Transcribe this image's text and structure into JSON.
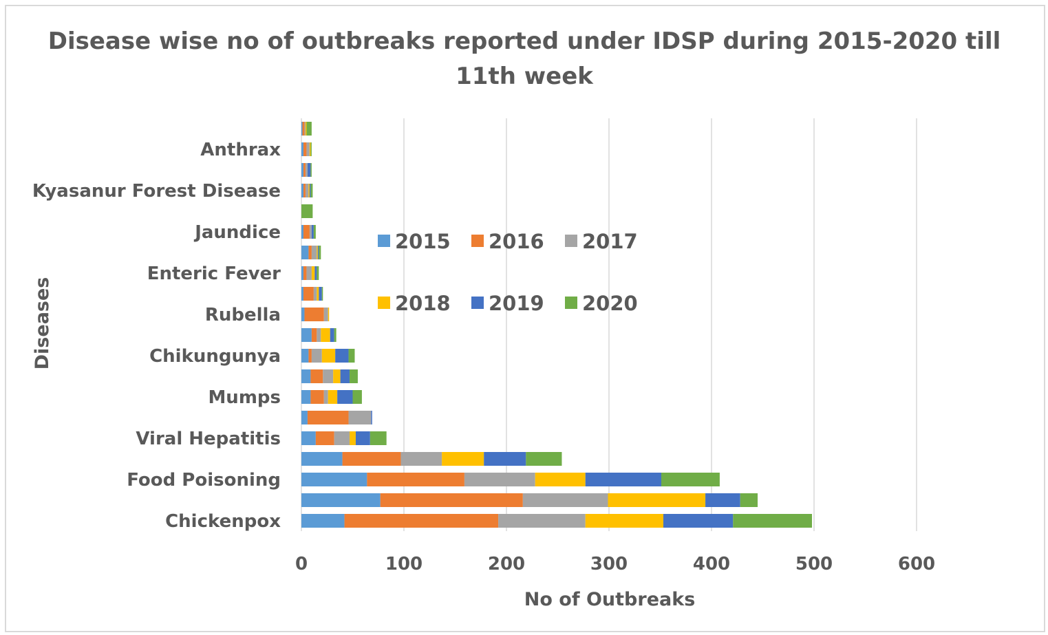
{
  "chart_data": {
    "type": "bar",
    "orientation": "horizontal",
    "stacked": true,
    "title": "Disease wise no of outbreaks reported under IDSP during 2015-2020 till 11th week",
    "title_lines": [
      "Disease wise no of outbreaks reported under IDSP during 2015-2020 till",
      "11th week"
    ],
    "xlabel": "No of Outbreaks",
    "ylabel": "Diseases",
    "xlim": [
      0,
      600
    ],
    "xticks": [
      "0",
      "100",
      "200",
      "300",
      "400",
      "500",
      "600"
    ],
    "grid": "vertical",
    "legend_position": "inside-center",
    "categories": [
      "Chickenpox",
      "",
      "Food Poisoning",
      "",
      "Viral Hepatitis",
      "",
      "Mumps",
      "",
      "Chikungunya",
      "",
      "Rubella",
      "",
      "Enteric Fever",
      "",
      "Jaundice",
      "",
      "Kyasanur Forest Disease",
      "",
      "Anthrax",
      ""
    ],
    "series": [
      {
        "name": "2015",
        "color": "#5b9bd5",
        "values": [
          42,
          77,
          64,
          40,
          14,
          6,
          9,
          9,
          7,
          10,
          3,
          2,
          2,
          7,
          2,
          0,
          2,
          2,
          2,
          1
        ]
      },
      {
        "name": "2016",
        "color": "#ed7d31",
        "values": [
          150,
          139,
          95,
          57,
          18,
          40,
          13,
          12,
          3,
          5,
          19,
          10,
          3,
          3,
          6,
          0,
          2,
          2,
          3,
          2
        ]
      },
      {
        "name": "2017",
        "color": "#a5a5a5",
        "values": [
          85,
          83,
          69,
          40,
          15,
          22,
          4,
          10,
          10,
          4,
          4,
          3,
          5,
          5,
          2,
          0,
          3,
          2,
          3,
          1
        ]
      },
      {
        "name": "2018",
        "color": "#ffc000",
        "values": [
          76,
          95,
          49,
          41,
          6,
          0,
          9,
          7,
          13,
          9,
          1,
          2,
          3,
          1,
          0,
          0,
          1,
          0,
          1,
          1
        ]
      },
      {
        "name": "2019",
        "color": "#4472c4",
        "values": [
          68,
          34,
          74,
          41,
          14,
          1,
          15,
          9,
          13,
          4,
          0,
          3,
          2,
          1,
          2,
          0,
          1,
          3,
          0,
          0
        ]
      },
      {
        "name": "2020",
        "color": "#70ad47",
        "values": [
          77,
          17,
          57,
          35,
          16,
          0,
          9,
          8,
          6,
          2,
          0,
          1,
          2,
          2,
          2,
          11,
          2,
          1,
          1,
          5
        ]
      }
    ]
  }
}
